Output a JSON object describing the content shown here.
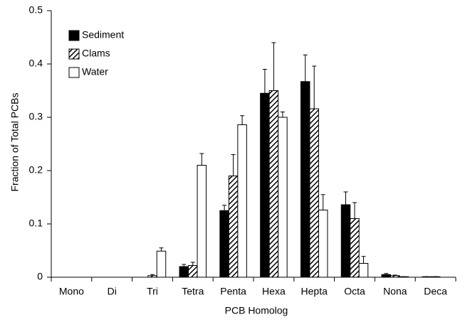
{
  "chart_data": {
    "type": "bar",
    "categories": [
      "Mono",
      "Di",
      "Tri",
      "Tetra",
      "Penta",
      "Hexa",
      "Hepta",
      "Octa",
      "Nona",
      "Deca"
    ],
    "series": [
      {
        "name": "Sediment",
        "color": "#000000",
        "pattern": "solid",
        "values": [
          0,
          0,
          0,
          0.02,
          0.125,
          0.345,
          0.367,
          0.136,
          0.005,
          0.001
        ],
        "errors": [
          0,
          0,
          0,
          0.004,
          0.01,
          0.045,
          0.05,
          0.024,
          0.002,
          0
        ]
      },
      {
        "name": "Clams",
        "color": "#000000",
        "pattern": "hatch",
        "values": [
          0,
          0,
          0.003,
          0.022,
          0.19,
          0.35,
          0.316,
          0.11,
          0.003,
          0.001
        ],
        "errors": [
          0,
          0,
          0.002,
          0.006,
          0.04,
          0.09,
          0.08,
          0.03,
          0.001,
          0
        ]
      },
      {
        "name": "Water",
        "color": "#ffffff",
        "pattern": "solid",
        "values": [
          0,
          0,
          0.049,
          0.21,
          0.286,
          0.3,
          0.126,
          0.026,
          0.001,
          0
        ],
        "errors": [
          0,
          0,
          0.006,
          0.022,
          0.017,
          0.01,
          0.029,
          0.013,
          0,
          0
        ]
      }
    ],
    "xlabel": "PCB Homolog",
    "ylabel": "Fraction of Total PCBs",
    "ylim": [
      0,
      0.5
    ],
    "yticks": [
      0,
      0.1,
      0.2,
      0.3,
      0.4,
      0.5
    ],
    "legend": "upper left"
  }
}
